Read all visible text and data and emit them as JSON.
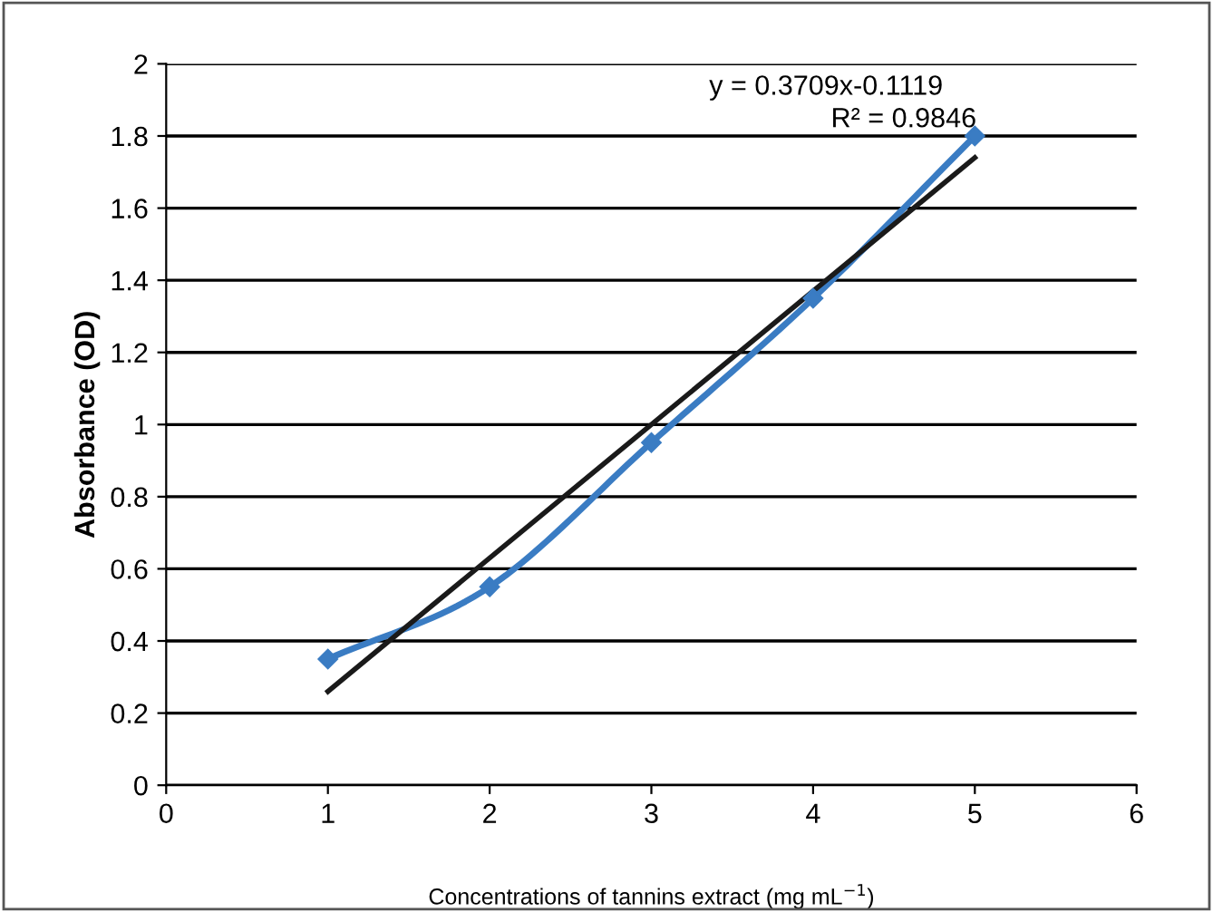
{
  "chart_data": {
    "type": "line",
    "xlabel": "Concentrations of tannins extract (mg mL$^{−1}$)",
    "ylabel": "Absorbance (OD)",
    "series": [
      {
        "x": [
          1,
          2,
          3,
          4,
          5
        ],
        "values": [
          0.35,
          0.55,
          0.95,
          1.35,
          1.8
        ],
        "color": "#3a7cc3",
        "marker": "diamond",
        "line_style": "solid"
      },
      {
        "x": [
          1,
          5
        ],
        "values": [
          0.26,
          1.74
        ],
        "color": "#1a1a1a",
        "marker": "none",
        "line_style": "solid"
      }
    ],
    "annotations": [
      "y = 0.3709x-0.1119",
      "R² = 0.9846"
    ],
    "xlim": [
      0,
      6
    ],
    "xticks": [
      0,
      1,
      2,
      3,
      4,
      5,
      6
    ],
    "ylim": [
      0,
      2
    ],
    "yticks": [
      0,
      0.2,
      0.4,
      0.6,
      0.8,
      1,
      1.2,
      1.4,
      1.6,
      1.8,
      2
    ],
    "grid": "y",
    "legend": false
  }
}
